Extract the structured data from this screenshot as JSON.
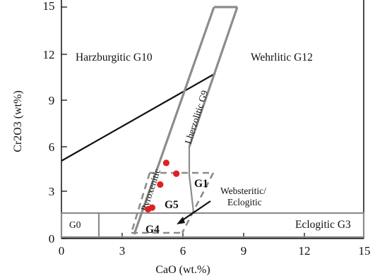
{
  "axes": {
    "x_title": "CaO (wt.%)",
    "y_title": "Cr2O3 (wt%)",
    "x_ticks": [
      "0",
      "3",
      "6",
      "9",
      "12",
      "15"
    ],
    "y_ticks": [
      "0",
      "3",
      "6",
      "9",
      "12",
      "15"
    ]
  },
  "fields": {
    "harzburgitic": "Harzburgitic G10",
    "wehrlitic": "Wehrlitic G12",
    "lherzolitic": "Lherzolitic G9",
    "pyroxenitic": "Pyroxenitic",
    "g0": "G0",
    "g1": "G1",
    "g5": "G5",
    "g4": "G4",
    "websteritic_line1": "Websteritic/",
    "websteritic_line2": "Eclogitic",
    "eclogitic": "Eclogitic G3"
  },
  "colors": {
    "sample_points": "#e02020",
    "field_boundaries": "#8c8c8c"
  },
  "samples": [
    {
      "cao": 5.2,
      "cr2o3": 4.9
    },
    {
      "cao": 5.7,
      "cr2o3": 4.2
    },
    {
      "cao": 4.9,
      "cr2o3": 3.5
    },
    {
      "cao": 4.5,
      "cr2o3": 2.0
    },
    {
      "cao": 4.3,
      "cr2o3": 1.9
    }
  ]
}
